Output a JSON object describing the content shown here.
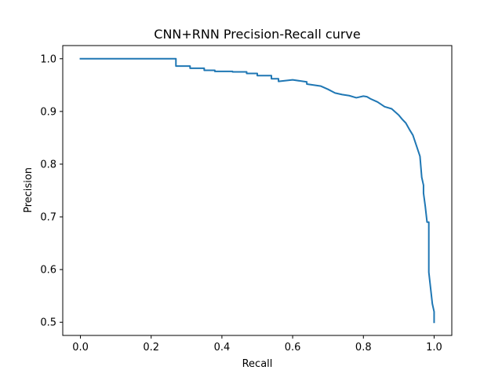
{
  "chart_data": {
    "type": "line",
    "title": "CNN+RNN Precision-Recall curve",
    "xlabel": "Recall",
    "ylabel": "Precision",
    "xlim": [
      -0.05,
      1.05
    ],
    "ylim": [
      0.475,
      1.025
    ],
    "xticks": [
      0.0,
      0.2,
      0.4,
      0.6,
      0.8,
      1.0
    ],
    "xtick_labels": [
      "0.0",
      "0.2",
      "0.4",
      "0.6",
      "0.8",
      "1.0"
    ],
    "yticks": [
      0.5,
      0.6,
      0.7,
      0.8,
      0.9,
      1.0
    ],
    "ytick_labels": [
      "0.5",
      "0.6",
      "0.7",
      "0.8",
      "0.9",
      "1.0"
    ],
    "grid": false,
    "legend": "none",
    "series": [
      {
        "color": "#1f77b4",
        "x": [
          0.0,
          0.27,
          0.27,
          0.31,
          0.31,
          0.35,
          0.35,
          0.38,
          0.38,
          0.43,
          0.43,
          0.47,
          0.47,
          0.5,
          0.5,
          0.54,
          0.54,
          0.56,
          0.56,
          0.6,
          0.64,
          0.64,
          0.68,
          0.7,
          0.72,
          0.74,
          0.76,
          0.78,
          0.8,
          0.81,
          0.82,
          0.84,
          0.86,
          0.88,
          0.9,
          0.91,
          0.92,
          0.93,
          0.94,
          0.95,
          0.96,
          0.965,
          0.97,
          0.97,
          0.975,
          0.98,
          0.985,
          0.985,
          0.99,
          0.995,
          1.0,
          1.0
        ],
        "y": [
          1.0,
          1.0,
          0.986,
          0.986,
          0.982,
          0.982,
          0.978,
          0.978,
          0.976,
          0.976,
          0.975,
          0.975,
          0.972,
          0.972,
          0.968,
          0.968,
          0.962,
          0.962,
          0.957,
          0.96,
          0.956,
          0.952,
          0.948,
          0.942,
          0.935,
          0.932,
          0.93,
          0.926,
          0.929,
          0.928,
          0.924,
          0.918,
          0.909,
          0.905,
          0.893,
          0.885,
          0.878,
          0.866,
          0.855,
          0.835,
          0.815,
          0.775,
          0.76,
          0.745,
          0.72,
          0.69,
          0.69,
          0.595,
          0.565,
          0.535,
          0.52,
          0.5
        ]
      }
    ]
  }
}
